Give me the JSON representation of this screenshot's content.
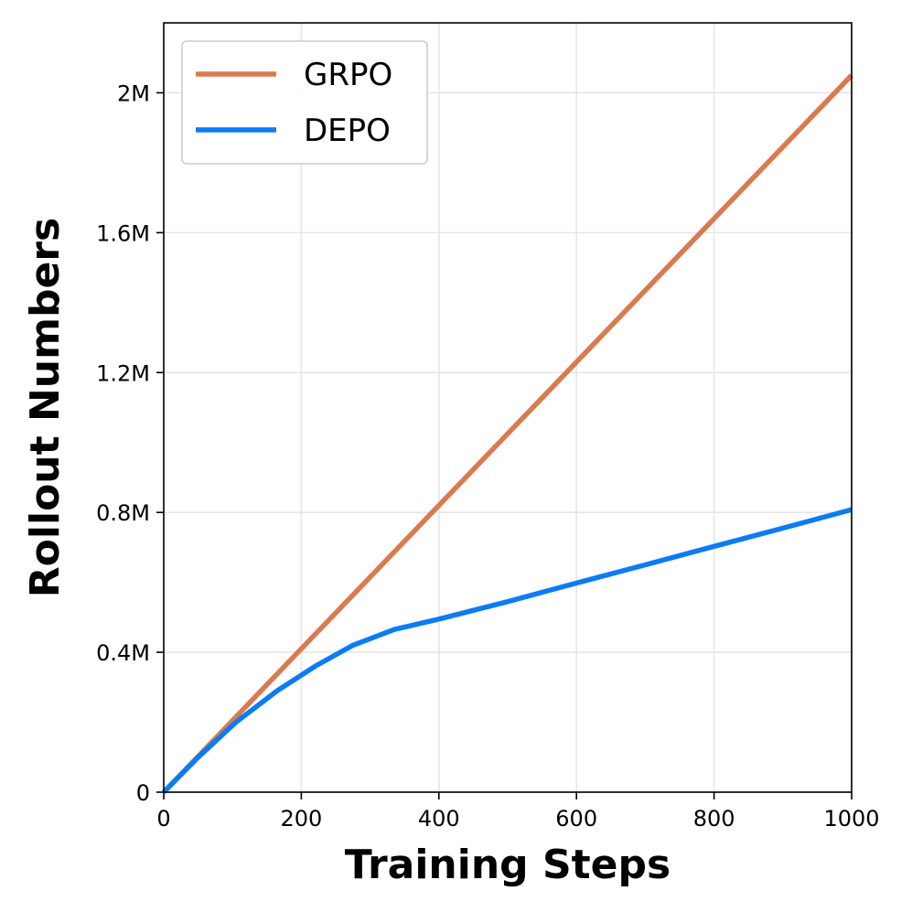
{
  "chart_data": {
    "type": "line",
    "title": "",
    "xlabel": "Training Steps",
    "ylabel": "Rollout Numbers",
    "xlim": [
      0,
      1000
    ],
    "ylim": [
      0,
      2200000
    ],
    "grid": true,
    "legend_position": "top-left",
    "x_ticks": [
      0,
      200,
      400,
      600,
      800,
      1000
    ],
    "x_tick_labels": [
      "0",
      "200",
      "400",
      "600",
      "800",
      "1000"
    ],
    "y_ticks": [
      0,
      400000,
      800000,
      1200000,
      1600000,
      2000000
    ],
    "y_tick_labels": [
      "0",
      "0.4M",
      "0.8M",
      "1.2M",
      "1.6M",
      "2M"
    ],
    "series": [
      {
        "name": "GRPO",
        "color": "#d97b4f",
        "x": [
          0,
          1000
        ],
        "y": [
          0,
          2050000
        ]
      },
      {
        "name": "DEPO",
        "color": "#0a7cf5",
        "x": [
          0,
          50,
          105,
          165,
          220,
          275,
          335,
          400,
          500,
          600,
          700,
          800,
          900,
          1000
        ],
        "y": [
          0,
          100000,
          200000,
          290000,
          360000,
          420000,
          465000,
          495000,
          545000,
          598000,
          650000,
          703000,
          755000,
          808000
        ]
      }
    ]
  }
}
